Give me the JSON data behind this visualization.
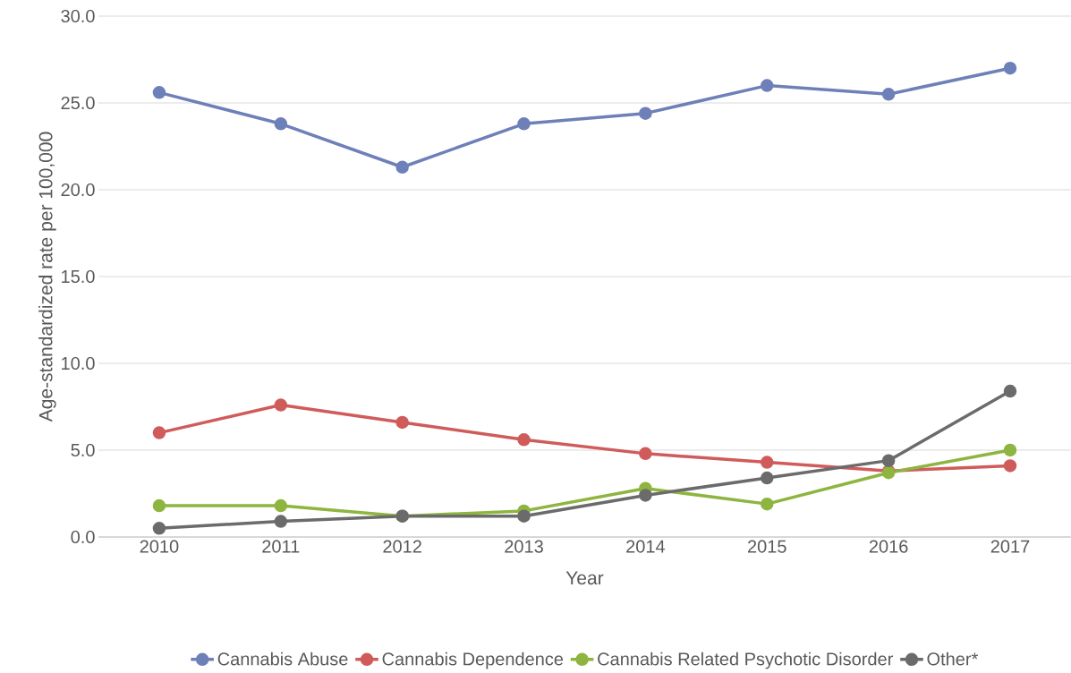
{
  "chart_data": {
    "type": "line",
    "xlabel": "Year",
    "ylabel": "Age-standardized rate per 100,000",
    "categories": [
      "2010",
      "2011",
      "2012",
      "2013",
      "2014",
      "2015",
      "2016",
      "2017"
    ],
    "series": [
      {
        "name": "Cannabis Abuse",
        "color": "#6e80b8",
        "values": [
          25.6,
          23.8,
          21.3,
          23.8,
          24.4,
          26.0,
          25.5,
          27.0
        ]
      },
      {
        "name": "Cannabis Dependence",
        "color": "#d05b5b",
        "values": [
          6.0,
          7.6,
          6.6,
          5.6,
          4.8,
          4.3,
          3.8,
          4.1
        ]
      },
      {
        "name": "Cannabis Related Psychotic Disorder",
        "color": "#8db53f",
        "values": [
          1.8,
          1.8,
          1.2,
          1.5,
          2.8,
          1.9,
          3.7,
          5.0
        ]
      },
      {
        "name": "Other*",
        "color": "#6b6b6b",
        "values": [
          0.5,
          0.9,
          1.2,
          1.2,
          2.4,
          3.4,
          4.4,
          8.4
        ]
      }
    ],
    "ylim": [
      0,
      30
    ],
    "yticks": [
      {
        "value": 0,
        "label": "0.0"
      },
      {
        "value": 5,
        "label": "5.0"
      },
      {
        "value": 10,
        "label": "10.0"
      },
      {
        "value": 15,
        "label": "15.0"
      },
      {
        "value": 20,
        "label": "20.0"
      },
      {
        "value": 25,
        "label": "25.0"
      },
      {
        "value": 30,
        "label": "30.0"
      }
    ],
    "grid": "y",
    "legend": "bottom",
    "marker": "circle",
    "line_style": "solid"
  }
}
